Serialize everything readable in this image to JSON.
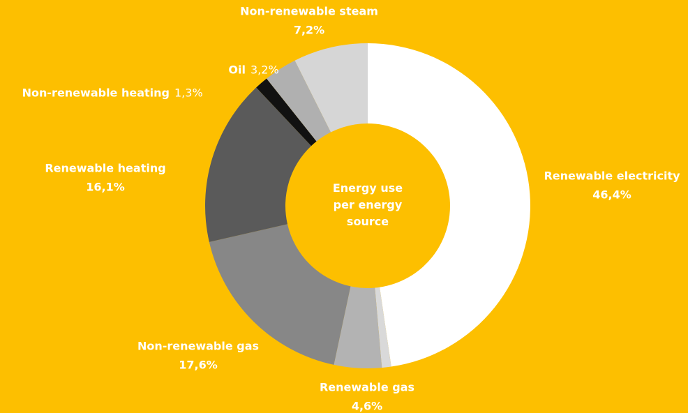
{
  "chart_data": {
    "type": "donut",
    "center_label": "Energy use per energy source",
    "categories": [
      "Renewable electricity",
      null,
      "Renewable gas",
      "Non-renewable gas",
      "Renewable heating",
      "Non-renewable heating",
      "Oil",
      "Non-renewable steam"
    ],
    "values": [
      46.4,
      0.9,
      4.6,
      17.6,
      16.1,
      1.3,
      3.2,
      7.2
    ],
    "value_labels": [
      "46,4%",
      null,
      "4,6%",
      "17,6%",
      "16,1%",
      "1,3%",
      "3,2%",
      "7,2%"
    ],
    "colors": [
      "#ffffff",
      "#d9d9d9",
      "#b3b3b3",
      "#878787",
      "#5a5a5a",
      "#111111",
      "#b0b0b0",
      "#d6d6d6"
    ],
    "background": "#fdbf00"
  }
}
